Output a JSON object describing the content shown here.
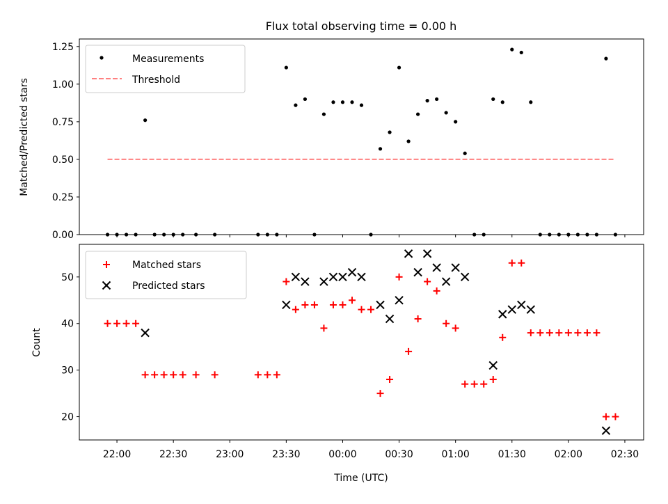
{
  "colors": {
    "measurement": "#000000",
    "threshold": "#ff8080",
    "matched": "#ff0000",
    "predicted": "#000000",
    "axis": "#000000"
  },
  "chart_data": [
    {
      "type": "scatter",
      "title": "Flux total observing time = 0.00 h",
      "xlabel": "",
      "ylabel": "Matched/Predicted stars",
      "xlim": [
        "21:40",
        "02:40"
      ],
      "ylim": [
        0,
        1.3
      ],
      "yticks": [
        0.0,
        0.25,
        0.5,
        0.75,
        1.0,
        1.25
      ],
      "ytick_labels": [
        "0.00",
        "0.25",
        "0.50",
        "0.75",
        "1.00",
        "1.25"
      ],
      "legend": {
        "position": "top-left",
        "entries": [
          {
            "name": "Measurements",
            "marker": "dot"
          },
          {
            "name": "Threshold",
            "marker": "dashed-line"
          }
        ]
      },
      "series": [
        {
          "name": "Measurements",
          "x": [
            "21:55",
            "22:00",
            "22:05",
            "22:10",
            "22:15",
            "22:20",
            "22:25",
            "22:30",
            "22:35",
            "22:42",
            "22:52",
            "23:15",
            "23:20",
            "23:25",
            "23:30",
            "23:35",
            "23:40",
            "23:45",
            "23:50",
            "23:55",
            "00:00",
            "00:05",
            "00:10",
            "00:15",
            "00:20",
            "00:25",
            "00:30",
            "00:35",
            "00:40",
            "00:45",
            "00:50",
            "00:55",
            "01:00",
            "01:05",
            "01:10",
            "01:15",
            "01:20",
            "01:25",
            "01:30",
            "01:35",
            "01:40",
            "01:45",
            "01:50",
            "01:55",
            "02:00",
            "02:05",
            "02:10",
            "02:15",
            "02:20",
            "02:25"
          ],
          "y": [
            0,
            0,
            0,
            0,
            0.76,
            0,
            0,
            0,
            0,
            0,
            0,
            0,
            0,
            0,
            1.11,
            0.86,
            0.9,
            0,
            0.8,
            0.88,
            0.88,
            0.88,
            0.86,
            0,
            0.57,
            0.68,
            1.11,
            0.62,
            0.8,
            0.89,
            0.9,
            0.81,
            0.75,
            0.54,
            0,
            0,
            0.9,
            0.88,
            1.23,
            1.21,
            0.88,
            0,
            0,
            0,
            0,
            0,
            0,
            0,
            1.17,
            0
          ]
        },
        {
          "name": "Threshold",
          "x": [
            "21:55",
            "02:25"
          ],
          "y": [
            0.5,
            0.5
          ]
        }
      ]
    },
    {
      "type": "scatter",
      "title": "",
      "xlabel": "Time (UTC)",
      "ylabel": "Count",
      "xlim": [
        "21:40",
        "02:40"
      ],
      "ylim": [
        15,
        57
      ],
      "yticks": [
        20,
        30,
        40,
        50
      ],
      "ytick_labels": [
        "20",
        "30",
        "40",
        "50"
      ],
      "xticks": [
        "22:00",
        "22:30",
        "23:00",
        "23:30",
        "00:00",
        "00:30",
        "01:00",
        "01:30",
        "02:00",
        "02:30"
      ],
      "xtick_labels": [
        "22:00",
        "22:30",
        "23:00",
        "23:30",
        "00:00",
        "00:30",
        "01:00",
        "01:30",
        "02:00",
        "02:30"
      ],
      "legend": {
        "position": "top-left",
        "entries": [
          {
            "name": "Matched stars",
            "marker": "plus"
          },
          {
            "name": "Predicted stars",
            "marker": "x"
          }
        ]
      },
      "series": [
        {
          "name": "Matched stars",
          "x": [
            "21:55",
            "22:00",
            "22:05",
            "22:10",
            "22:15",
            "22:20",
            "22:25",
            "22:30",
            "22:35",
            "22:42",
            "22:52",
            "23:15",
            "23:20",
            "23:25",
            "23:30",
            "23:35",
            "23:40",
            "23:45",
            "23:50",
            "23:55",
            "00:00",
            "00:05",
            "00:10",
            "00:15",
            "00:20",
            "00:25",
            "00:30",
            "00:35",
            "00:40",
            "00:45",
            "00:50",
            "00:55",
            "01:00",
            "01:05",
            "01:10",
            "01:15",
            "01:20",
            "01:25",
            "01:30",
            "01:35",
            "01:40",
            "01:45",
            "01:50",
            "01:55",
            "02:00",
            "02:05",
            "02:10",
            "02:15",
            "02:20",
            "02:25"
          ],
          "y": [
            40,
            40,
            40,
            40,
            29,
            29,
            29,
            29,
            29,
            29,
            29,
            29,
            29,
            29,
            49,
            43,
            44,
            44,
            39,
            44,
            44,
            45,
            43,
            43,
            25,
            28,
            50,
            34,
            41,
            49,
            47,
            40,
            39,
            27,
            27,
            27,
            28,
            37,
            53,
            53,
            38,
            38,
            38,
            38,
            38,
            38,
            38,
            38,
            20,
            20
          ]
        },
        {
          "name": "Predicted stars",
          "x": [
            "22:15",
            "23:30",
            "23:35",
            "23:40",
            "23:50",
            "23:55",
            "00:00",
            "00:05",
            "00:10",
            "00:20",
            "00:25",
            "00:30",
            "00:35",
            "00:40",
            "00:45",
            "00:50",
            "00:55",
            "01:00",
            "01:05",
            "01:20",
            "01:25",
            "01:30",
            "01:35",
            "01:40",
            "02:20"
          ],
          "y": [
            38,
            44,
            50,
            49,
            49,
            50,
            50,
            51,
            50,
            44,
            41,
            45,
            55,
            51,
            55,
            52,
            49,
            52,
            50,
            31,
            42,
            43,
            44,
            43,
            17
          ]
        }
      ]
    }
  ]
}
